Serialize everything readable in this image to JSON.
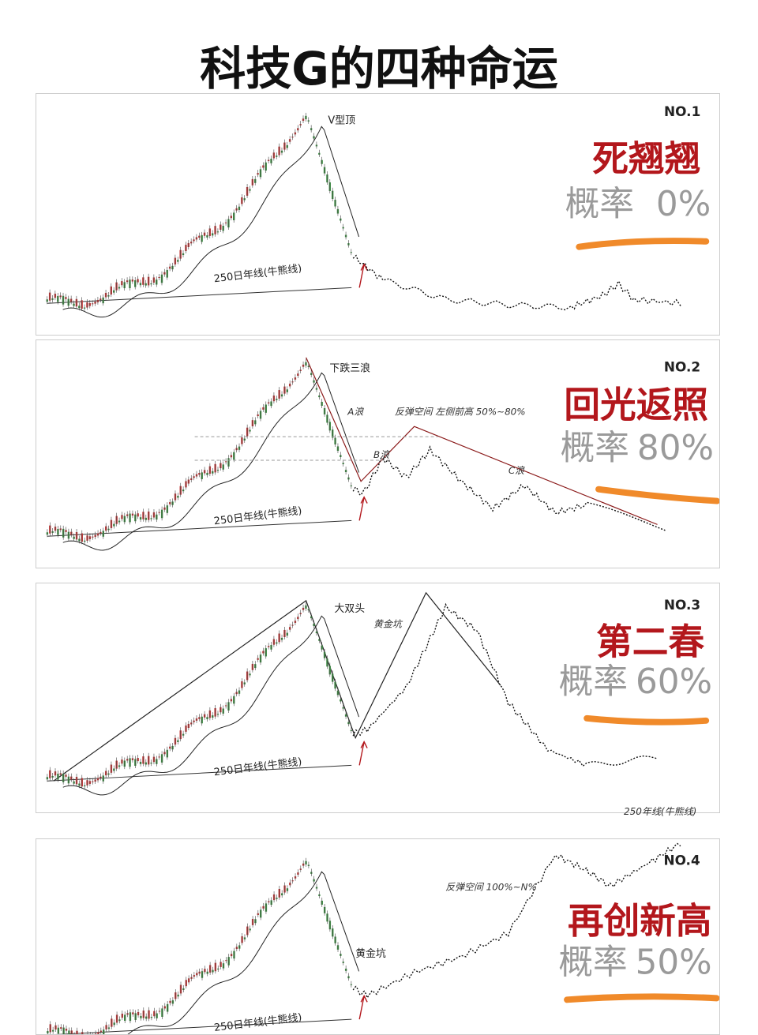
{
  "title": "科技G的四种命运",
  "panels": [
    {
      "number": "NO.1",
      "name": "死翘翘",
      "probability_label": "概率",
      "probability": "0%",
      "pattern": "V型顶",
      "ma_label": "250日年线(牛熊线)"
    },
    {
      "number": "NO.2",
      "name": "回光返照",
      "probability_label": "概率",
      "probability": "80%",
      "pattern": "下跌三浪",
      "ma_label": "250日年线(牛熊线)",
      "notes": [
        "A浪",
        "B浪",
        "C浪",
        "反弹空间 左侧前高 50%~80%"
      ]
    },
    {
      "number": "NO.3",
      "name": "第二春",
      "probability_label": "概率",
      "probability": "60%",
      "pattern": "大双头",
      "ma_label": "250日年线(牛熊线)",
      "notes": [
        "黄金坑"
      ]
    },
    {
      "number": "NO.4",
      "name": "再创新高",
      "probability_label": "概率",
      "probability": "50%",
      "pattern": "黄金坑",
      "ma_label": "250日年线(牛熊线)",
      "notes": [
        "反弹空间 100%~N%",
        "250年线(牛熊线)"
      ]
    }
  ]
}
